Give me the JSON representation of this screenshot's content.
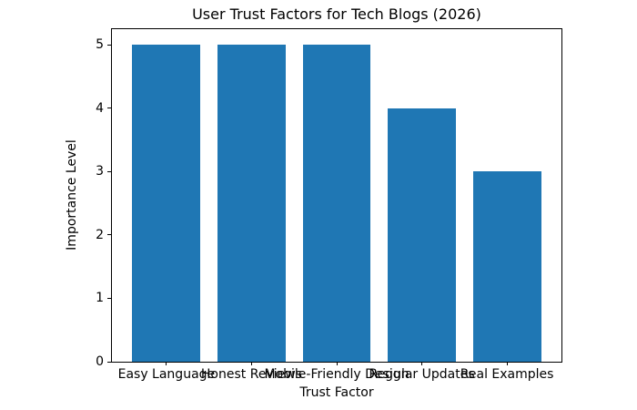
{
  "chart_data": {
    "type": "bar",
    "title": "User Trust Factors for Tech Blogs (2026)",
    "xlabel": "Trust Factor",
    "ylabel": "Importance Level",
    "categories": [
      "Easy Language",
      "Honest Reviews",
      "Mobile-Friendly Design",
      "Regular Updates",
      "Real Examples"
    ],
    "values": [
      5,
      5,
      5,
      4,
      3
    ],
    "yticks": [
      0,
      1,
      2,
      3,
      4,
      5
    ],
    "ylim": [
      0,
      5.25
    ],
    "xlim": [
      -0.64,
      4.64
    ],
    "bar_width": 0.8,
    "bar_color": "#1f77b4",
    "axis_color": "#000000",
    "text_color": "#000000",
    "background_color": "#ffffff",
    "grid": false,
    "legend": null
  }
}
